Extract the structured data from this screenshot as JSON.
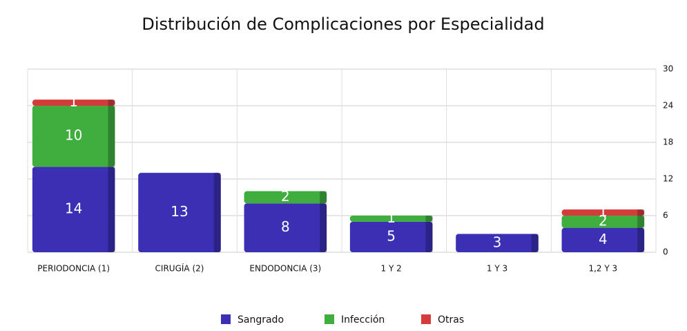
{
  "chart_data": {
    "type": "stacked_bar",
    "title": "Distribución de Complicaciones por Especialidad",
    "categories": [
      "PERIODONCIA (1)",
      "CIRUGÍA (2)",
      "ENDODONCIA (3)",
      "1 Y 2",
      "1 Y 3",
      "1,2 Y 3"
    ],
    "series": [
      {
        "name": "Sangrado",
        "color": "#3b2fb3",
        "values": [
          14,
          13,
          8,
          5,
          3,
          4
        ]
      },
      {
        "name": "Infección",
        "color": "#3fae3f",
        "values": [
          10,
          null,
          2,
          1,
          null,
          2
        ]
      },
      {
        "name": "Otras",
        "color": "#d63b3b",
        "values": [
          1,
          null,
          null,
          null,
          null,
          1
        ]
      }
    ],
    "ylim": [
      0,
      30
    ],
    "yticks": [
      0,
      6,
      12,
      18,
      24,
      30
    ],
    "grid": true,
    "legend": "bottom"
  }
}
